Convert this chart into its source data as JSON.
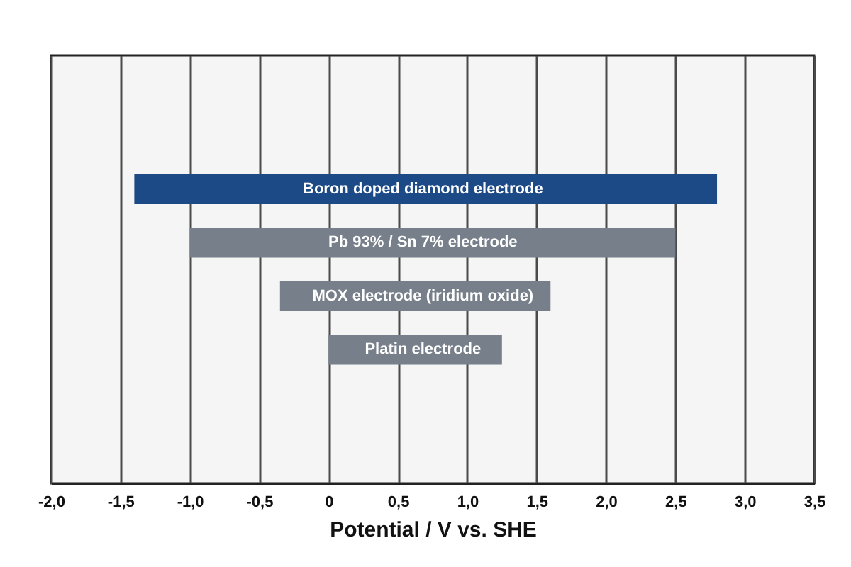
{
  "chart_data": {
    "type": "bar",
    "orientation": "horizontal",
    "xlabel": "Potential / V vs. SHE",
    "categories": [
      null,
      null,
      "Boron doped diamond electrode",
      "Pb 93% / Sn 7% electrode",
      "MOX electrode (iridium oxide)",
      "Platin electrode",
      null,
      null
    ],
    "base": [
      null,
      null,
      -1.4,
      -1.0,
      -0.35,
      0,
      null,
      null
    ],
    "values": [
      null,
      null,
      4.2,
      3.5,
      1.95,
      1.25,
      null,
      null
    ],
    "colors": [
      null,
      null,
      "#1c4a87",
      "#77808a",
      "#77808a",
      "#77808a",
      null,
      null
    ],
    "xlim": [
      -2.0,
      3.5
    ],
    "xticks": [
      {
        "value": -2,
        "label": "-2,0"
      },
      {
        "value": -1.5,
        "label": "-1,5"
      },
      {
        "value": -1,
        "label": "-1,0"
      },
      {
        "value": -0.5,
        "label": "-0,5"
      },
      {
        "value": 0,
        "label": "0"
      },
      {
        "value": 0.5,
        "label": "0,5"
      },
      {
        "value": 1,
        "label": "1,0"
      },
      {
        "value": 1.5,
        "label": "1,5"
      },
      {
        "value": 2,
        "label": "2,0"
      },
      {
        "value": 2.5,
        "label": "2,5"
      },
      {
        "value": 3,
        "label": "3,0"
      },
      {
        "value": 3.5,
        "label": "3,5"
      }
    ],
    "grid": "x"
  }
}
